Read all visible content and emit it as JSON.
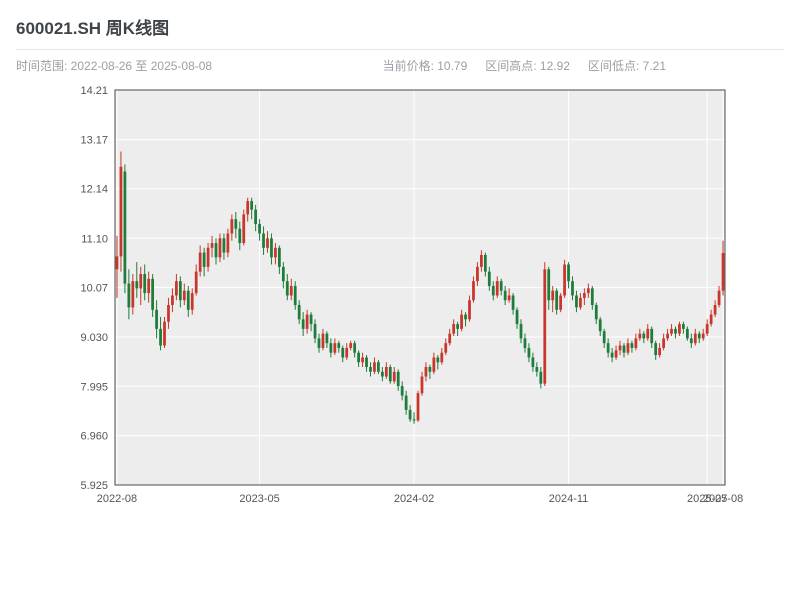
{
  "header": {
    "title": "600021.SH 周K线图",
    "time_range": "时间范围: 2022-08-26 至 2025-08-08",
    "current_price": "当前价格: 10.79",
    "range_high": "区间高点: 12.92",
    "range_low": "区间低点: 7.21"
  },
  "chart_data": {
    "type": "candlestick",
    "title": "600021.SH 周K线图",
    "symbol": "600021.SH",
    "frequency": "weekly",
    "xlabel": "",
    "ylabel": "",
    "ylim": [
      5.925,
      14.21
    ],
    "y_ticks": [
      "14.21",
      "13.17",
      "12.14",
      "11.10",
      "10.07",
      "9.030",
      "7.995",
      "6.960",
      "5.925"
    ],
    "x_ticks": [
      {
        "label": "2022-08",
        "i": 0
      },
      {
        "label": "2023-05",
        "i": 36
      },
      {
        "label": "2024-02",
        "i": 75
      },
      {
        "label": "2024-11",
        "i": 114
      },
      {
        "label": "2025-07",
        "i": 149
      },
      {
        "label": "2025-08",
        "i": 153
      }
    ],
    "up_color": "#c9372c",
    "down_color": "#1e7d3c",
    "plot_bg": "#ededed",
    "grid_color": "#ffffff",
    "current_price": 10.79,
    "range_high": 12.92,
    "range_low": 7.21,
    "candles": [
      [
        10.45,
        11.15,
        9.85,
        10.72
      ],
      [
        10.72,
        12.92,
        10.4,
        12.6
      ],
      [
        12.5,
        12.65,
        9.95,
        10.15
      ],
      [
        10.15,
        10.45,
        9.4,
        9.65
      ],
      [
        9.65,
        10.35,
        9.5,
        10.2
      ],
      [
        10.2,
        10.6,
        9.85,
        10.05
      ],
      [
        10.05,
        10.5,
        9.7,
        10.35
      ],
      [
        10.35,
        10.55,
        9.8,
        9.95
      ],
      [
        9.95,
        10.4,
        9.75,
        10.25
      ],
      [
        10.25,
        10.35,
        9.45,
        9.6
      ],
      [
        9.6,
        9.8,
        9.0,
        9.2
      ],
      [
        9.2,
        9.45,
        8.75,
        8.85
      ],
      [
        8.85,
        9.45,
        8.8,
        9.35
      ],
      [
        9.35,
        9.85,
        9.2,
        9.7
      ],
      [
        9.7,
        10.05,
        9.55,
        9.9
      ],
      [
        9.9,
        10.35,
        9.8,
        10.2
      ],
      [
        10.2,
        10.3,
        9.65,
        9.8
      ],
      [
        9.8,
        10.15,
        9.7,
        10.0
      ],
      [
        10.0,
        10.1,
        9.45,
        9.6
      ],
      [
        9.6,
        10.05,
        9.5,
        9.95
      ],
      [
        9.95,
        10.55,
        9.9,
        10.4
      ],
      [
        10.4,
        10.95,
        10.3,
        10.8
      ],
      [
        10.8,
        10.9,
        10.3,
        10.5
      ],
      [
        10.5,
        11.0,
        10.4,
        10.9
      ],
      [
        10.9,
        11.15,
        10.7,
        11.0
      ],
      [
        11.0,
        11.1,
        10.55,
        10.7
      ],
      [
        10.7,
        11.2,
        10.6,
        11.1
      ],
      [
        11.1,
        11.2,
        10.65,
        10.8
      ],
      [
        10.8,
        11.3,
        10.7,
        11.2
      ],
      [
        11.2,
        11.6,
        11.05,
        11.5
      ],
      [
        11.5,
        11.65,
        11.1,
        11.3
      ],
      [
        11.3,
        11.45,
        10.85,
        11.0
      ],
      [
        11.0,
        11.7,
        10.95,
        11.6
      ],
      [
        11.6,
        11.95,
        11.45,
        11.88
      ],
      [
        11.88,
        11.95,
        11.5,
        11.7
      ],
      [
        11.7,
        11.8,
        11.25,
        11.4
      ],
      [
        11.4,
        11.5,
        11.05,
        11.2
      ],
      [
        11.2,
        11.35,
        10.75,
        10.9
      ],
      [
        10.9,
        11.25,
        10.8,
        11.1
      ],
      [
        11.1,
        11.2,
        10.55,
        10.7
      ],
      [
        10.7,
        11.0,
        10.55,
        10.9
      ],
      [
        10.9,
        10.95,
        10.35,
        10.5
      ],
      [
        10.5,
        10.6,
        10.05,
        10.2
      ],
      [
        10.2,
        10.35,
        9.8,
        9.9
      ],
      [
        9.9,
        10.25,
        9.8,
        10.1
      ],
      [
        10.1,
        10.2,
        9.6,
        9.7
      ],
      [
        9.7,
        9.8,
        9.3,
        9.4
      ],
      [
        9.4,
        9.55,
        9.05,
        9.2
      ],
      [
        9.2,
        9.6,
        9.1,
        9.5
      ],
      [
        9.5,
        9.55,
        9.15,
        9.3
      ],
      [
        9.3,
        9.4,
        8.9,
        9.0
      ],
      [
        9.0,
        9.1,
        8.7,
        8.8
      ],
      [
        8.8,
        9.2,
        8.75,
        9.1
      ],
      [
        9.1,
        9.15,
        8.8,
        8.9
      ],
      [
        8.9,
        9.0,
        8.6,
        8.7
      ],
      [
        8.7,
        9.0,
        8.65,
        8.9
      ],
      [
        8.9,
        8.95,
        8.7,
        8.8
      ],
      [
        8.8,
        8.85,
        8.5,
        8.6
      ],
      [
        8.6,
        8.9,
        8.55,
        8.8
      ],
      [
        8.8,
        8.95,
        8.75,
        8.9
      ],
      [
        8.9,
        8.95,
        8.6,
        8.7
      ],
      [
        8.7,
        8.75,
        8.4,
        8.5
      ],
      [
        8.5,
        8.7,
        8.4,
        8.6
      ],
      [
        8.6,
        8.65,
        8.3,
        8.4
      ],
      [
        8.4,
        8.5,
        8.2,
        8.3
      ],
      [
        8.3,
        8.6,
        8.25,
        8.5
      ],
      [
        8.5,
        8.55,
        8.25,
        8.3
      ],
      [
        8.3,
        8.4,
        8.1,
        8.2
      ],
      [
        8.2,
        8.5,
        8.15,
        8.4
      ],
      [
        8.4,
        8.45,
        8.05,
        8.1
      ],
      [
        8.1,
        8.4,
        8.05,
        8.3
      ],
      [
        8.3,
        8.35,
        7.9,
        8.0
      ],
      [
        8.0,
        8.1,
        7.7,
        7.8
      ],
      [
        7.8,
        7.9,
        7.4,
        7.5
      ],
      [
        7.5,
        7.6,
        7.25,
        7.3
      ],
      [
        7.3,
        7.45,
        7.21,
        7.28
      ],
      [
        7.28,
        7.9,
        7.25,
        7.85
      ],
      [
        7.85,
        8.3,
        7.8,
        8.2
      ],
      [
        8.2,
        8.5,
        8.1,
        8.4
      ],
      [
        8.4,
        8.45,
        8.15,
        8.3
      ],
      [
        8.3,
        8.7,
        8.25,
        8.6
      ],
      [
        8.6,
        8.65,
        8.35,
        8.5
      ],
      [
        8.5,
        8.8,
        8.45,
        8.7
      ],
      [
        8.7,
        9.0,
        8.65,
        8.9
      ],
      [
        8.9,
        9.2,
        8.85,
        9.1
      ],
      [
        9.1,
        9.4,
        9.05,
        9.3
      ],
      [
        9.3,
        9.35,
        9.05,
        9.2
      ],
      [
        9.2,
        9.6,
        9.15,
        9.5
      ],
      [
        9.5,
        9.55,
        9.25,
        9.4
      ],
      [
        9.4,
        9.9,
        9.35,
        9.8
      ],
      [
        9.8,
        10.3,
        9.75,
        10.2
      ],
      [
        10.2,
        10.6,
        10.1,
        10.5
      ],
      [
        10.5,
        10.85,
        10.4,
        10.75
      ],
      [
        10.75,
        10.8,
        10.3,
        10.4
      ],
      [
        10.4,
        10.5,
        10.0,
        10.1
      ],
      [
        10.1,
        10.2,
        9.8,
        9.9
      ],
      [
        9.9,
        10.3,
        9.85,
        10.2
      ],
      [
        10.2,
        10.25,
        9.9,
        10.0
      ],
      [
        10.0,
        10.1,
        9.7,
        9.8
      ],
      [
        9.8,
        10.05,
        9.75,
        9.9
      ],
      [
        9.9,
        9.95,
        9.5,
        9.6
      ],
      [
        9.6,
        9.65,
        9.2,
        9.3
      ],
      [
        9.3,
        9.4,
        8.9,
        9.0
      ],
      [
        9.0,
        9.1,
        8.7,
        8.8
      ],
      [
        8.8,
        8.9,
        8.5,
        8.6
      ],
      [
        8.6,
        8.7,
        8.3,
        8.4
      ],
      [
        8.4,
        8.5,
        8.2,
        8.3
      ],
      [
        8.3,
        8.4,
        7.95,
        8.05
      ],
      [
        8.05,
        10.6,
        8.0,
        10.45
      ],
      [
        10.45,
        10.5,
        9.6,
        9.8
      ],
      [
        9.8,
        10.1,
        9.55,
        10.0
      ],
      [
        10.0,
        10.05,
        9.5,
        9.6
      ],
      [
        9.6,
        9.95,
        9.55,
        9.9
      ],
      [
        9.9,
        10.65,
        9.85,
        10.55
      ],
      [
        10.55,
        10.6,
        10.05,
        10.2
      ],
      [
        10.2,
        10.3,
        9.8,
        9.9
      ],
      [
        9.9,
        10.0,
        9.55,
        9.65
      ],
      [
        9.65,
        9.95,
        9.6,
        9.85
      ],
      [
        9.85,
        10.05,
        9.7,
        9.95
      ],
      [
        9.95,
        10.15,
        9.85,
        10.05
      ],
      [
        10.05,
        10.1,
        9.6,
        9.7
      ],
      [
        9.7,
        9.75,
        9.3,
        9.4
      ],
      [
        9.4,
        9.45,
        9.05,
        9.15
      ],
      [
        9.15,
        9.2,
        8.8,
        8.9
      ],
      [
        8.9,
        9.0,
        8.6,
        8.7
      ],
      [
        8.7,
        8.8,
        8.5,
        8.6
      ],
      [
        8.6,
        8.85,
        8.55,
        8.75
      ],
      [
        8.75,
        8.95,
        8.65,
        8.85
      ],
      [
        8.85,
        8.9,
        8.6,
        8.7
      ],
      [
        8.7,
        9.0,
        8.65,
        8.9
      ],
      [
        8.9,
        8.95,
        8.7,
        8.8
      ],
      [
        8.8,
        9.1,
        8.75,
        9.0
      ],
      [
        9.0,
        9.2,
        8.95,
        9.1
      ],
      [
        9.1,
        9.15,
        8.9,
        9.0
      ],
      [
        9.0,
        9.3,
        8.95,
        9.2
      ],
      [
        9.2,
        9.25,
        8.8,
        8.9
      ],
      [
        8.9,
        8.95,
        8.55,
        8.65
      ],
      [
        8.65,
        8.9,
        8.6,
        8.8
      ],
      [
        8.8,
        9.1,
        8.75,
        9.0
      ],
      [
        9.0,
        9.2,
        8.95,
        9.1
      ],
      [
        9.1,
        9.3,
        9.05,
        9.2
      ],
      [
        9.2,
        9.25,
        9.0,
        9.1
      ],
      [
        9.1,
        9.35,
        9.05,
        9.3
      ],
      [
        9.3,
        9.35,
        9.1,
        9.2
      ],
      [
        9.2,
        9.25,
        8.95,
        9.0
      ],
      [
        9.0,
        9.1,
        8.8,
        8.9
      ],
      [
        8.9,
        9.2,
        8.85,
        9.1
      ],
      [
        9.1,
        9.15,
        8.9,
        9.0
      ],
      [
        9.0,
        9.2,
        8.95,
        9.1
      ],
      [
        9.1,
        9.4,
        9.05,
        9.3
      ],
      [
        9.3,
        9.6,
        9.25,
        9.5
      ],
      [
        9.5,
        9.8,
        9.45,
        9.7
      ],
      [
        9.7,
        10.1,
        9.65,
        10.0
      ],
      [
        10.0,
        11.05,
        9.9,
        10.79
      ]
    ]
  }
}
